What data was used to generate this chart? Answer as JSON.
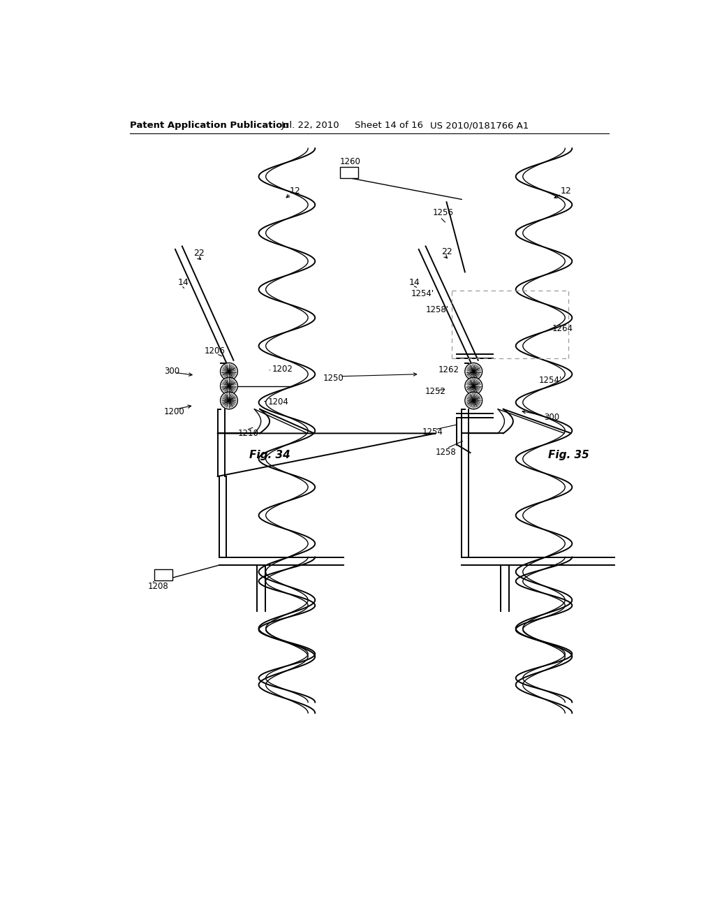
{
  "background_color": "#ffffff",
  "header_text": "Patent Application Publication",
  "header_date": "Jul. 22, 2010",
  "header_sheet": "Sheet 14 of 16",
  "header_patent": "US 2010/0181766 A1",
  "fig34_label": "Fig. 34",
  "fig35_label": "Fig. 35",
  "line_color": "#000000",
  "line_color_gray": "#888888"
}
